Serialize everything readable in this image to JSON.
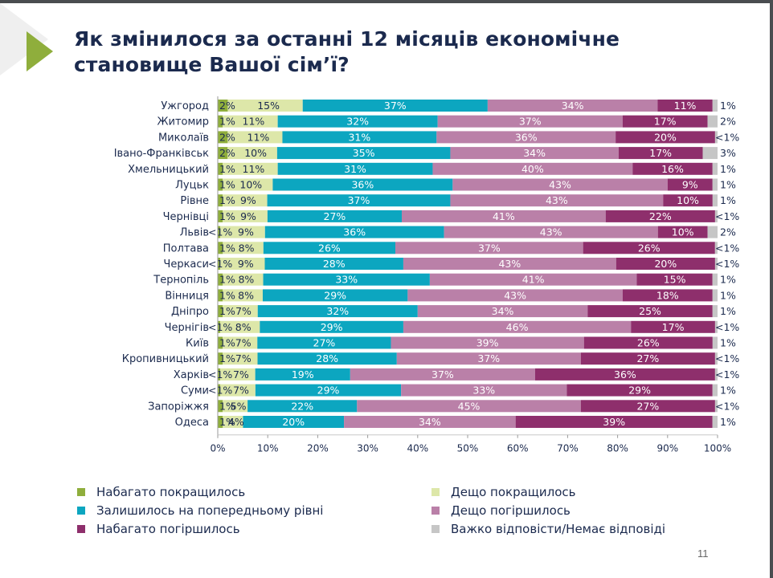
{
  "slide": {
    "title": "Як змінилося за останні 12 місяців економічне становище Вашої сім’ї?",
    "page_number": "11"
  },
  "chart_data": {
    "type": "bar",
    "orientation": "horizontal",
    "stacked": "percent",
    "title": "Як змінилося за останні 12 місяців економічне становище Вашої сім’ї?",
    "xlabel": "",
    "ylabel": "",
    "xlim": [
      0,
      100
    ],
    "xticks": [
      "0%",
      "10%",
      "20%",
      "30%",
      "40%",
      "50%",
      "60%",
      "70%",
      "80%",
      "90%",
      "100%"
    ],
    "grid": false,
    "legend_position": "bottom",
    "categories": [
      "Ужгород",
      "Житомир",
      "Миколаїв",
      "Івано-Франківськ",
      "Хмельницький",
      "Луцьк",
      "Рівне",
      "Чернівці",
      "Львів",
      "Полтава",
      "Черкаси",
      "Тернопіль",
      "Вінниця",
      "Дніпро",
      "Чернігів",
      "Київ",
      "Кропивницький",
      "Харків",
      "Суми",
      "Запоріжжя",
      "Одеса"
    ],
    "series": [
      {
        "name": "Набагато покращилось",
        "color": "#8fae3c",
        "label_color": "#1b2a4e",
        "values": [
          2,
          1,
          2,
          2,
          1,
          1,
          1,
          1,
          0.5,
          1,
          0.5,
          1,
          1,
          1,
          0.5,
          1,
          1,
          0.5,
          0.5,
          1,
          1
        ],
        "labels": [
          "2%",
          "1%",
          "2%",
          "2%",
          "1%",
          "1%",
          "1%",
          "1%",
          "<1%",
          "1%",
          "<1%",
          "1%",
          "1%",
          "1%",
          "<1%",
          "1%",
          "1%",
          "<1%",
          "<1%",
          "1%",
          "1%"
        ]
      },
      {
        "name": "Дещо покращилось",
        "color": "#dde7a9",
        "label_color": "#1b2a4e",
        "values": [
          15,
          11,
          11,
          10,
          11,
          10,
          9,
          9,
          9,
          8,
          9,
          8,
          8,
          7,
          8,
          7,
          7,
          7,
          7,
          5,
          4
        ],
        "labels": [
          "15%",
          "11%",
          "11%",
          "10%",
          "11%",
          "10%",
          "9%",
          "9%",
          "9%",
          "8%",
          "9%",
          "8%",
          "8%",
          "7%",
          "8%",
          "7%",
          "7%",
          "7%",
          "7%",
          "5%",
          "4%"
        ]
      },
      {
        "name": "Залишилось на попередньому рівні",
        "color": "#0ca6c0",
        "label_color": "#ffffff",
        "values": [
          37,
          32,
          31,
          35,
          31,
          36,
          37,
          27,
          36,
          26,
          28,
          33,
          29,
          32,
          29,
          27,
          28,
          19,
          29,
          22,
          20
        ],
        "labels": [
          "37%",
          "32%",
          "31%",
          "35%",
          "31%",
          "36%",
          "37%",
          "27%",
          "36%",
          "26%",
          "28%",
          "33%",
          "29%",
          "32%",
          "29%",
          "27%",
          "28%",
          "19%",
          "29%",
          "22%",
          "20%"
        ]
      },
      {
        "name": "Дещо погіршилось",
        "color": "#ba80a8",
        "label_color": "#ffffff",
        "values": [
          34,
          37,
          36,
          34,
          40,
          43,
          43,
          41,
          43,
          37,
          43,
          41,
          43,
          34,
          46,
          39,
          37,
          37,
          33,
          45,
          34
        ],
        "labels": [
          "34%",
          "37%",
          "36%",
          "34%",
          "40%",
          "43%",
          "43%",
          "41%",
          "43%",
          "37%",
          "43%",
          "41%",
          "43%",
          "34%",
          "46%",
          "39%",
          "37%",
          "37%",
          "33%",
          "45%",
          "34%"
        ]
      },
      {
        "name": "Набагато погіршилось",
        "color": "#8e2f6c",
        "label_color": "#ffffff",
        "values": [
          11,
          17,
          20,
          17,
          16,
          9,
          10,
          22,
          10,
          26,
          20,
          15,
          18,
          25,
          17,
          26,
          27,
          36,
          29,
          27,
          39
        ],
        "labels": [
          "11%",
          "17%",
          "20%",
          "17%",
          "16%",
          "9%",
          "10%",
          "22%",
          "10%",
          "26%",
          "20%",
          "15%",
          "18%",
          "25%",
          "17%",
          "26%",
          "27%",
          "36%",
          "29%",
          "27%",
          "39%"
        ]
      },
      {
        "name": "Важко відповісти/Немає відповіді",
        "color": "#c6c6c6",
        "label_color": "#1b2a4e",
        "values": [
          1,
          2,
          0.5,
          3,
          1,
          1,
          1,
          0.5,
          2,
          0.5,
          0.5,
          1,
          1,
          1,
          0.5,
          1,
          0.5,
          0.5,
          1,
          0.5,
          1
        ],
        "labels": [
          "1%",
          "2%",
          "<1%",
          "3%",
          "1%",
          "1%",
          "1%",
          "<1%",
          "2%",
          "<1%",
          "<1%",
          "1%",
          "1%",
          "1%",
          "<1%",
          "1%",
          "<1%",
          "<1%",
          "1%",
          "<1%",
          "1%"
        ]
      }
    ]
  },
  "legend": {
    "left": [
      {
        "label": "Набагато покращилось",
        "color": "#8fae3c"
      },
      {
        "label": "Залишилось на попередньому рівні",
        "color": "#0ca6c0"
      },
      {
        "label": "Набагато погіршилось",
        "color": "#8e2f6c"
      }
    ],
    "right": [
      {
        "label": "Дещо покращилось",
        "color": "#dde7a9"
      },
      {
        "label": "Дещо погіршилось",
        "color": "#ba80a8"
      },
      {
        "label": "Важко відповісти/Немає відповіді",
        "color": "#c6c6c6"
      }
    ]
  }
}
